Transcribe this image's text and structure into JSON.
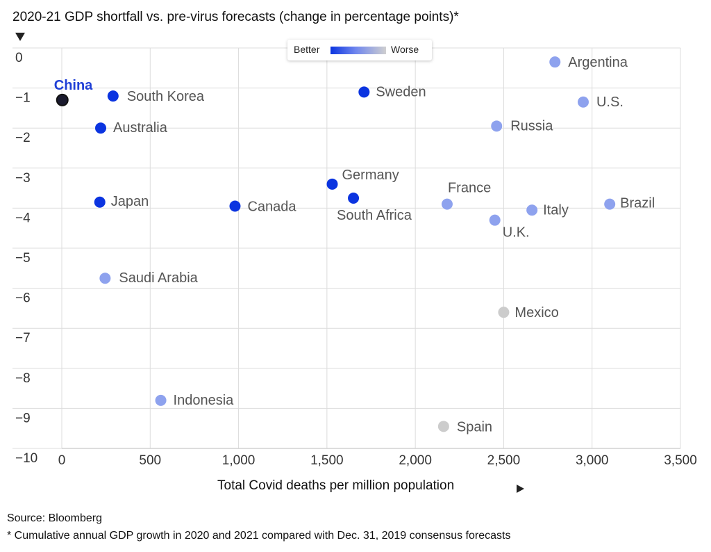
{
  "title": "2020-21 GDP shortfall vs. pre-virus forecasts (change in percentage points)*",
  "legend": {
    "better": "Better",
    "worse": "Worse",
    "gradient": [
      "#0b34e0",
      "#cfcfcf"
    ]
  },
  "xaxis_label": "Total Covid deaths per million population",
  "source": "Source: Bloomberg",
  "footnote": "* Cumulative annual GDP growth in 2020 and 2021 compared with Dec. 31, 2019 consensus forecasts",
  "colors": {
    "dark_blue": "#0b34e0",
    "light_blue": "#8ea2ee",
    "gray": "#cccccc",
    "china_label": "#1f3fd6"
  },
  "chart_data": {
    "type": "scatter",
    "title": "2020-21 GDP shortfall vs. pre-virus forecasts (change in percentage points)*",
    "xlabel": "Total Covid deaths per million population",
    "ylabel": "",
    "xlim": [
      0,
      3500
    ],
    "ylim": [
      -10,
      0
    ],
    "xticks": [
      0,
      500,
      1000,
      1500,
      2000,
      2500,
      3000,
      3500
    ],
    "xtick_labels": [
      "0",
      "500",
      "1,000",
      "1,500",
      "2,000",
      "2,500",
      "3,000",
      "3,500"
    ],
    "yticks": [
      0,
      -1,
      -2,
      -3,
      -4,
      -5,
      -6,
      -7,
      -8,
      -9,
      -10
    ],
    "ytick_labels": [
      "0",
      "−1",
      "−2",
      "−3",
      "−4",
      "−5",
      "−6",
      "−7",
      "−8",
      "−9",
      "−10"
    ],
    "grid": true,
    "points": [
      {
        "name": "China",
        "x": 3,
        "y": -1.3,
        "color": "#0b34e0",
        "highlight": true
      },
      {
        "name": "South Korea",
        "x": 290,
        "y": -1.2,
        "color": "#0b34e0"
      },
      {
        "name": "Australia",
        "x": 220,
        "y": -2.0,
        "color": "#0b34e0"
      },
      {
        "name": "Japan",
        "x": 215,
        "y": -3.85,
        "color": "#0b34e0"
      },
      {
        "name": "Canada",
        "x": 980,
        "y": -3.95,
        "color": "#0b34e0"
      },
      {
        "name": "Germany",
        "x": 1530,
        "y": -3.4,
        "color": "#0b34e0"
      },
      {
        "name": "South Africa",
        "x": 1650,
        "y": -3.75,
        "color": "#0b34e0"
      },
      {
        "name": "Sweden",
        "x": 1710,
        "y": -1.1,
        "color": "#0b34e0"
      },
      {
        "name": "Saudi Arabia",
        "x": 245,
        "y": -5.75,
        "color": "#8ea2ee"
      },
      {
        "name": "Indonesia",
        "x": 560,
        "y": -8.8,
        "color": "#8ea2ee"
      },
      {
        "name": "France",
        "x": 2180,
        "y": -3.9,
        "color": "#8ea2ee"
      },
      {
        "name": "U.K.",
        "x": 2450,
        "y": -4.3,
        "color": "#8ea2ee"
      },
      {
        "name": "Italy",
        "x": 2660,
        "y": -4.05,
        "color": "#8ea2ee"
      },
      {
        "name": "Brazil",
        "x": 3100,
        "y": -3.9,
        "color": "#8ea2ee"
      },
      {
        "name": "Russia",
        "x": 2460,
        "y": -1.95,
        "color": "#8ea2ee"
      },
      {
        "name": "Argentina",
        "x": 2790,
        "y": -0.35,
        "color": "#8ea2ee"
      },
      {
        "name": "U.S.",
        "x": 2950,
        "y": -1.35,
        "color": "#8ea2ee"
      },
      {
        "name": "Mexico",
        "x": 2500,
        "y": -6.6,
        "color": "#cccccc"
      },
      {
        "name": "Spain",
        "x": 2160,
        "y": -9.45,
        "color": "#cccccc"
      }
    ]
  }
}
